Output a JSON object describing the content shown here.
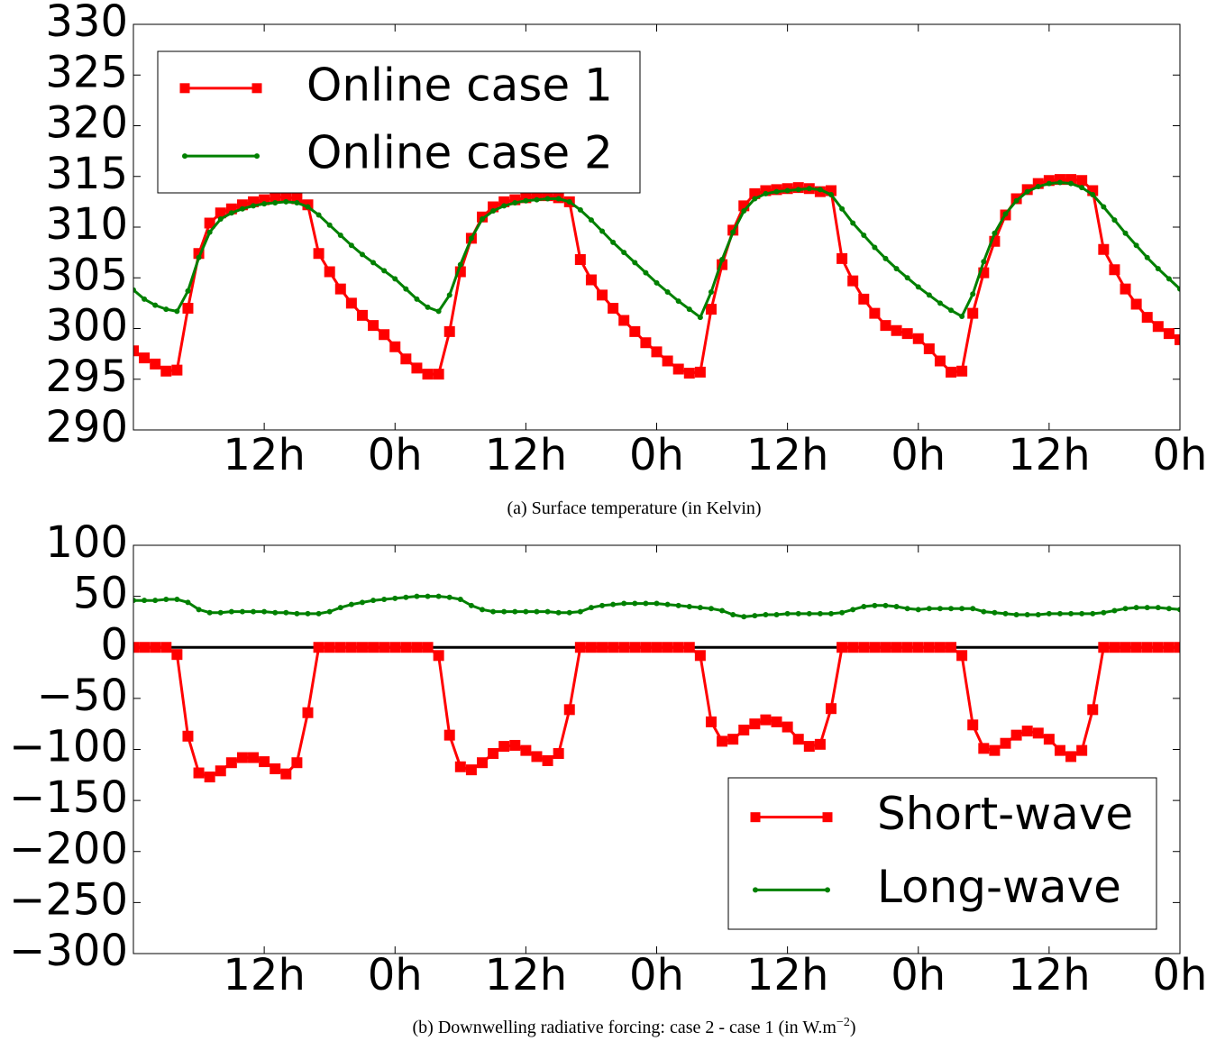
{
  "chart_data": [
    {
      "type": "line",
      "caption": "(a) Surface temperature (in Kelvin)",
      "x": [
        0,
        1,
        2,
        3,
        4,
        5,
        6,
        7,
        8,
        9,
        10,
        11,
        12,
        13,
        14,
        15,
        16,
        17,
        18,
        19,
        20,
        21,
        22,
        23,
        24,
        25,
        26,
        27,
        28,
        29,
        30,
        31,
        32,
        33,
        34,
        35,
        36,
        37,
        38,
        39,
        40,
        41,
        42,
        43,
        44,
        45,
        46,
        47,
        48,
        49,
        50,
        51,
        52,
        53,
        54,
        55,
        56,
        57,
        58,
        59,
        60,
        61,
        62,
        63,
        64,
        65,
        66,
        67,
        68,
        69,
        70,
        71,
        72,
        73,
        74,
        75,
        76,
        77,
        78,
        79,
        80,
        81,
        82,
        83,
        84,
        85,
        86,
        87,
        88,
        89,
        90,
        91,
        92,
        93,
        94,
        95,
        96
      ],
      "xlim": [
        0,
        96
      ],
      "xticks": [
        {
          "value": 12,
          "label": "12h"
        },
        {
          "value": 24,
          "label": "0h"
        },
        {
          "value": 36,
          "label": "12h"
        },
        {
          "value": 48,
          "label": "0h"
        },
        {
          "value": 60,
          "label": "12h"
        },
        {
          "value": 72,
          "label": "0h"
        },
        {
          "value": 84,
          "label": "12h"
        },
        {
          "value": 96,
          "label": "0h"
        }
      ],
      "ylim": [
        290,
        330
      ],
      "yticks": [
        290,
        295,
        300,
        305,
        310,
        315,
        320,
        325,
        330
      ],
      "legend": "upper left",
      "series": [
        {
          "name": "Online case 1",
          "color": "#ff0000",
          "marker": "square",
          "values": [
            297.8,
            297.1,
            296.5,
            295.8,
            295.9,
            302.0,
            307.4,
            310.4,
            311.4,
            311.8,
            312.2,
            312.5,
            312.7,
            312.9,
            313.0,
            312.8,
            312.2,
            307.4,
            305.6,
            303.9,
            302.5,
            301.3,
            300.3,
            299.4,
            298.2,
            297.0,
            296.1,
            295.5,
            295.5,
            299.7,
            305.6,
            308.9,
            311.0,
            312.0,
            312.5,
            312.7,
            312.9,
            313.1,
            313.1,
            312.9,
            312.5,
            306.8,
            304.8,
            303.3,
            302.0,
            300.8,
            299.7,
            298.6,
            297.7,
            296.8,
            296.0,
            295.6,
            295.7,
            301.9,
            306.3,
            309.7,
            312.1,
            313.3,
            313.6,
            313.7,
            313.8,
            313.9,
            313.8,
            313.5,
            313.6,
            306.9,
            304.7,
            302.9,
            301.5,
            300.3,
            299.8,
            299.5,
            299.0,
            298.0,
            296.8,
            295.7,
            295.8,
            301.5,
            305.5,
            308.6,
            311.2,
            312.8,
            313.7,
            314.3,
            314.6,
            314.7,
            314.7,
            314.6,
            313.6,
            307.8,
            305.8,
            303.9,
            302.4,
            301.1,
            300.2,
            299.5,
            298.9
          ]
        },
        {
          "name": "Online case 2",
          "color": "#008000",
          "marker": "dot",
          "values": [
            303.8,
            302.9,
            302.3,
            301.9,
            301.7,
            303.7,
            307.0,
            309.5,
            310.8,
            311.4,
            311.8,
            312.1,
            312.3,
            312.4,
            312.5,
            312.4,
            312.0,
            311.2,
            310.2,
            309.2,
            308.2,
            307.3,
            306.5,
            305.7,
            304.9,
            303.9,
            302.9,
            302.1,
            301.7,
            303.3,
            306.3,
            308.9,
            310.8,
            311.6,
            312.1,
            312.4,
            312.6,
            312.7,
            312.8,
            312.8,
            312.5,
            311.7,
            310.7,
            309.6,
            308.5,
            307.5,
            306.5,
            305.5,
            304.5,
            303.6,
            302.7,
            301.9,
            301.1,
            303.6,
            306.8,
            309.5,
            311.6,
            312.8,
            313.3,
            313.5,
            313.6,
            313.7,
            313.8,
            313.7,
            313.2,
            311.8,
            310.4,
            309.2,
            308.0,
            306.9,
            305.9,
            305.0,
            304.1,
            303.3,
            302.5,
            301.8,
            301.2,
            303.4,
            306.6,
            309.4,
            311.3,
            312.6,
            313.5,
            314.0,
            314.3,
            314.4,
            314.3,
            313.9,
            313.2,
            312.0,
            310.7,
            309.4,
            308.2,
            307.0,
            305.9,
            304.9,
            303.9
          ]
        }
      ]
    },
    {
      "type": "line",
      "caption": "(b) Downwelling radiative forcing: case 2 - case 1 (in W.m",
      "caption_sup": "−2",
      "caption_end": ")",
      "x": [
        0,
        1,
        2,
        3,
        4,
        5,
        6,
        7,
        8,
        9,
        10,
        11,
        12,
        13,
        14,
        15,
        16,
        17,
        18,
        19,
        20,
        21,
        22,
        23,
        24,
        25,
        26,
        27,
        28,
        29,
        30,
        31,
        32,
        33,
        34,
        35,
        36,
        37,
        38,
        39,
        40,
        41,
        42,
        43,
        44,
        45,
        46,
        47,
        48,
        49,
        50,
        51,
        52,
        53,
        54,
        55,
        56,
        57,
        58,
        59,
        60,
        61,
        62,
        63,
        64,
        65,
        66,
        67,
        68,
        69,
        70,
        71,
        72,
        73,
        74,
        75,
        76,
        77,
        78,
        79,
        80,
        81,
        82,
        83,
        84,
        85,
        86,
        87,
        88,
        89,
        90,
        91,
        92,
        93,
        94,
        95,
        96
      ],
      "xlim": [
        0,
        96
      ],
      "xticks": [
        {
          "value": 12,
          "label": "12h"
        },
        {
          "value": 24,
          "label": "0h"
        },
        {
          "value": 36,
          "label": "12h"
        },
        {
          "value": 48,
          "label": "0h"
        },
        {
          "value": 60,
          "label": "12h"
        },
        {
          "value": 72,
          "label": "0h"
        },
        {
          "value": 84,
          "label": "12h"
        },
        {
          "value": 96,
          "label": "0h"
        }
      ],
      "ylim": [
        -300,
        100
      ],
      "yticks": [
        {
          "value": -300,
          "label": "−300"
        },
        {
          "value": -250,
          "label": "−250"
        },
        {
          "value": -200,
          "label": "−200"
        },
        {
          "value": -150,
          "label": "−150"
        },
        {
          "value": -100,
          "label": "−100"
        },
        {
          "value": -50,
          "label": "−50"
        },
        0,
        50,
        100
      ],
      "hline": 0,
      "legend": "lower right",
      "series": [
        {
          "name": "Short-wave",
          "color": "#ff0000",
          "marker": "square",
          "values": [
            0,
            0,
            0,
            0,
            -7,
            -87,
            -123,
            -127,
            -121,
            -113,
            -108,
            -108,
            -112,
            -119,
            -124,
            -113,
            -64,
            0,
            0,
            0,
            0,
            0,
            0,
            0,
            0,
            0,
            0,
            0,
            -8,
            -86,
            -117,
            -120,
            -113,
            -104,
            -97,
            -96,
            -101,
            -107,
            -111,
            -104,
            -61,
            0,
            0,
            0,
            0,
            0,
            0,
            0,
            0,
            0,
            0,
            0,
            -8,
            -73,
            -92,
            -90,
            -81,
            -75,
            -71,
            -73,
            -78,
            -90,
            -97,
            -95,
            -60,
            0,
            0,
            0,
            0,
            0,
            0,
            0,
            0,
            0,
            0,
            0,
            -8,
            -76,
            -99,
            -101,
            -94,
            -86,
            -82,
            -84,
            -90,
            -101,
            -107,
            -101,
            -61,
            0,
            0,
            0,
            0,
            0,
            0,
            0,
            0
          ]
        },
        {
          "name": "Long-wave",
          "color": "#008000",
          "marker": "dot",
          "values": [
            46,
            46,
            46,
            47,
            47,
            44,
            37,
            34,
            34,
            35,
            35,
            35,
            35,
            34,
            34,
            33,
            33,
            33,
            35,
            39,
            42,
            44,
            46,
            47,
            48,
            49,
            50,
            50,
            50,
            49,
            47,
            41,
            37,
            35,
            35,
            35,
            35,
            35,
            35,
            34,
            34,
            35,
            39,
            41,
            42,
            43,
            43,
            43,
            43,
            42,
            41,
            40,
            39,
            38,
            36,
            32,
            30,
            31,
            32,
            32,
            33,
            33,
            33,
            33,
            33,
            34,
            37,
            40,
            41,
            41,
            40,
            38,
            37,
            38,
            38,
            38,
            38,
            38,
            35,
            34,
            33,
            32,
            32,
            32,
            33,
            33,
            33,
            33,
            33,
            34,
            36,
            38,
            39,
            39,
            39,
            38,
            37
          ]
        }
      ]
    }
  ]
}
